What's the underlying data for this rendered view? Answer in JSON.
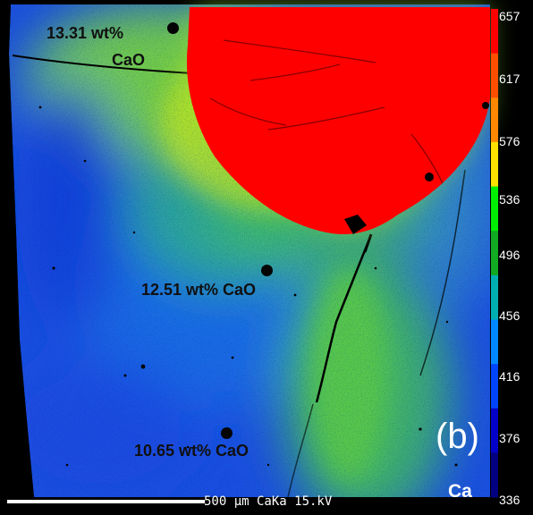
{
  "annotations": [
    {
      "line1": "13.31 wt%",
      "line2": "CaO"
    },
    {
      "text": "12.51 wt% CaO"
    },
    {
      "text": "10.65 wt% CaO"
    }
  ],
  "color_scale": {
    "labels": [
      "657",
      "617",
      "576",
      "536",
      "496",
      "456",
      "416",
      "376",
      "336"
    ],
    "colors": [
      "#ff0000",
      "#ff4e00",
      "#ff8800",
      "#ffe000",
      "#00ee00",
      "#11aa22",
      "#00b0b0",
      "#0088ff",
      "#0044ff",
      "#0000c8",
      "#000080"
    ]
  },
  "panel_letter": "(b)",
  "element": "Ca",
  "scale_bar": {
    "text": "500 μm  CaKa  15.kV"
  },
  "colors": {
    "background": "#000000",
    "grain": "#ff0000",
    "matrix_low": "#1750e0",
    "matrix_mid": "#15a0a0",
    "matrix_high": "#50d040"
  }
}
